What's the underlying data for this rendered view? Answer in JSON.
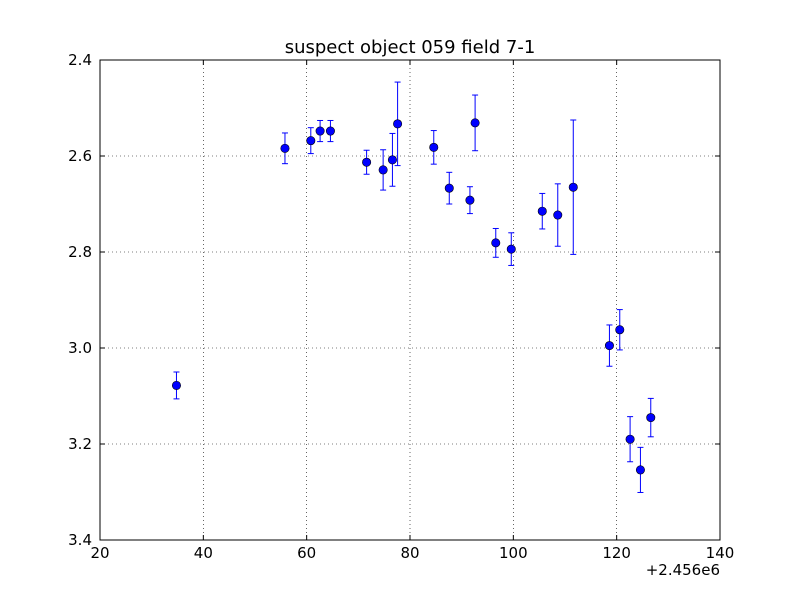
{
  "chart_data": {
    "type": "scatter",
    "title": "suspect object 059 field 7-1",
    "xlabel": "",
    "ylabel": "",
    "x_offset_label": "+2.456e6",
    "xlim": [
      20,
      140
    ],
    "ylim": [
      3.4,
      2.4
    ],
    "y_inverted": true,
    "grid": true,
    "x_ticks": [
      20,
      40,
      60,
      80,
      100,
      120,
      140
    ],
    "x_tick_labels": [
      "20",
      "40",
      "60",
      "80",
      "100",
      "120",
      "140"
    ],
    "y_ticks": [
      2.4,
      2.6,
      2.8,
      3.0,
      3.2,
      3.4
    ],
    "y_tick_labels": [
      "2.4",
      "2.6",
      "2.8",
      "3.0",
      "3.2",
      "3.4"
    ],
    "marker_color": "#0000ff",
    "errorbar_color": "#0000ff",
    "series": [
      {
        "points": [
          {
            "x": 34.8,
            "y": 3.078,
            "err": 0.028
          },
          {
            "x": 55.8,
            "y": 2.584,
            "err": 0.032
          },
          {
            "x": 60.8,
            "y": 2.568,
            "err": 0.027
          },
          {
            "x": 62.6,
            "y": 2.548,
            "err": 0.022
          },
          {
            "x": 64.6,
            "y": 2.548,
            "err": 0.022
          },
          {
            "x": 71.6,
            "y": 2.613,
            "err": 0.025
          },
          {
            "x": 74.8,
            "y": 2.629,
            "err": 0.042
          },
          {
            "x": 76.6,
            "y": 2.608,
            "err": 0.055
          },
          {
            "x": 77.6,
            "y": 2.533,
            "err": 0.087
          },
          {
            "x": 84.6,
            "y": 2.582,
            "err": 0.035
          },
          {
            "x": 87.6,
            "y": 2.667,
            "err": 0.033
          },
          {
            "x": 91.6,
            "y": 2.692,
            "err": 0.028
          },
          {
            "x": 92.6,
            "y": 2.531,
            "err": 0.058
          },
          {
            "x": 96.6,
            "y": 2.781,
            "err": 0.03
          },
          {
            "x": 99.6,
            "y": 2.794,
            "err": 0.034
          },
          {
            "x": 105.6,
            "y": 2.715,
            "err": 0.037
          },
          {
            "x": 108.6,
            "y": 2.723,
            "err": 0.065
          },
          {
            "x": 111.6,
            "y": 2.665,
            "err": 0.14
          },
          {
            "x": 118.6,
            "y": 2.995,
            "err": 0.043
          },
          {
            "x": 120.6,
            "y": 2.962,
            "err": 0.042
          },
          {
            "x": 122.6,
            "y": 3.19,
            "err": 0.047
          },
          {
            "x": 124.6,
            "y": 3.254,
            "err": 0.047
          },
          {
            "x": 126.6,
            "y": 3.145,
            "err": 0.04
          }
        ]
      }
    ]
  }
}
